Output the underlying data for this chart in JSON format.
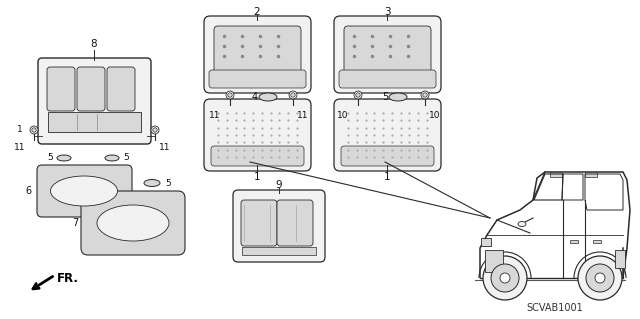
{
  "background_color": "#ffffff",
  "diagram_code": "SCVAB1001",
  "figsize": [
    6.4,
    3.19
  ],
  "dpi": 100,
  "line_color": "#2a2a2a",
  "text_color": "#111111",
  "gray_fill": "#d8d8d8",
  "light_fill": "#f2f2f2",
  "xlim": [
    0,
    640
  ],
  "ylim": [
    0,
    319
  ]
}
